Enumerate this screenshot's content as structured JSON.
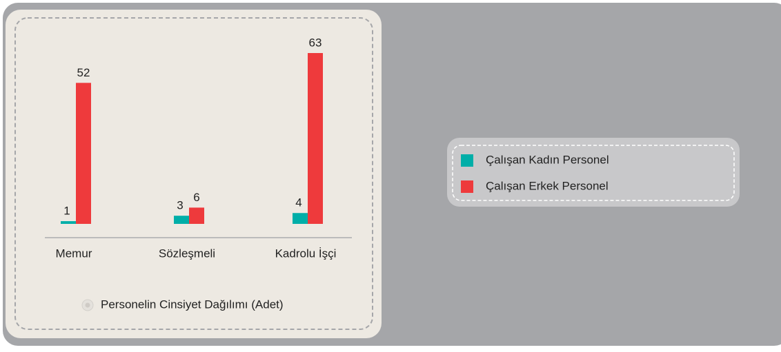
{
  "chart_data": {
    "type": "bar",
    "title": "Personelin Cinsiyet Dağılımı (Adet)",
    "categories": [
      "Memur",
      "Sözleşmeli",
      "Kadrolu İşçi"
    ],
    "series": [
      {
        "name": "Çalışan Kadın Personel",
        "color": "#00aea8",
        "values": [
          1,
          3,
          4
        ]
      },
      {
        "name": "Çalışan Erkek Personel",
        "color": "#ee3a3c",
        "values": [
          52,
          6,
          63
        ]
      }
    ]
  }
}
